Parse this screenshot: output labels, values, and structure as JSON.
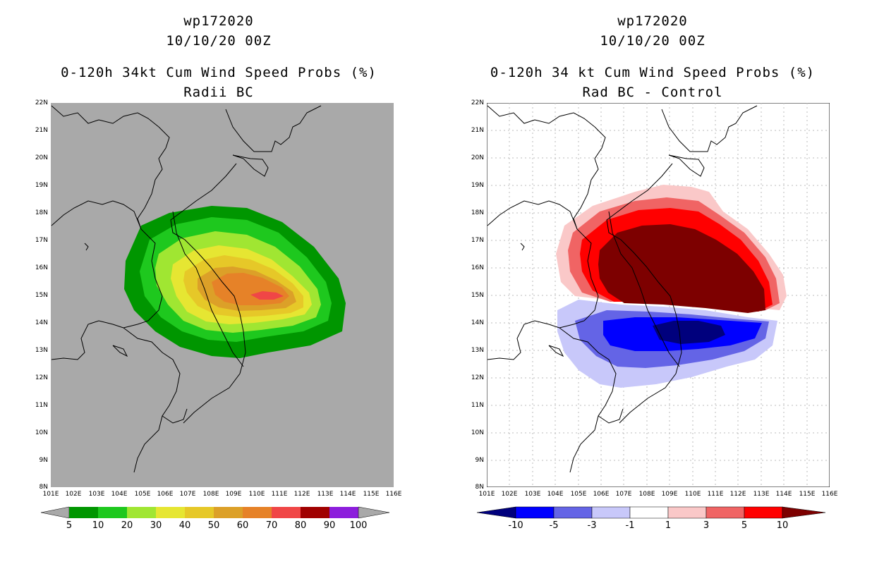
{
  "panels": [
    {
      "storm_id": "wp172020",
      "date": "10/10/20 00Z",
      "product": "0-120h 34kt Cum Wind Speed Probs (%)",
      "subtitle": "Radii BC",
      "background": "#a9a9a9",
      "colorbar": {
        "labels": [
          "5",
          "10",
          "20",
          "30",
          "40",
          "50",
          "60",
          "70",
          "80",
          "90",
          "100"
        ],
        "colors": [
          "#009600",
          "#1ec81e",
          "#a0e632",
          "#e6e632",
          "#e6c828",
          "#dca028",
          "#e68228",
          "#f04646",
          "#a00000",
          "#8c1edc"
        ]
      }
    },
    {
      "storm_id": "wp172020",
      "date": "10/10/20 00Z",
      "product": "0-120h 34 kt Cum Wind Speed Probs (%)",
      "subtitle": "Rad BC - Control",
      "background": "#ffffff",
      "colorbar": {
        "labels": [
          "-10",
          "-5",
          "-3",
          "-1",
          "1",
          "3",
          "5",
          "10"
        ],
        "colors": [
          "#00007d",
          "#0000ff",
          "#6464e6",
          "#c8c8fa",
          "#ffffff",
          "#fac8c8",
          "#f06464",
          "#ff0000",
          "#7d0000"
        ]
      }
    }
  ],
  "axes": {
    "lat_labels": [
      "22N",
      "21N",
      "20N",
      "19N",
      "18N",
      "17N",
      "16N",
      "15N",
      "14N",
      "13N",
      "12N",
      "11N",
      "10N",
      "9N",
      "8N"
    ],
    "lon_labels": [
      "101E",
      "102E",
      "103E",
      "104E",
      "105E",
      "106E",
      "107E",
      "108E",
      "109E",
      "110E",
      "111E",
      "112E",
      "113E",
      "114E",
      "115E",
      "116E"
    ]
  }
}
